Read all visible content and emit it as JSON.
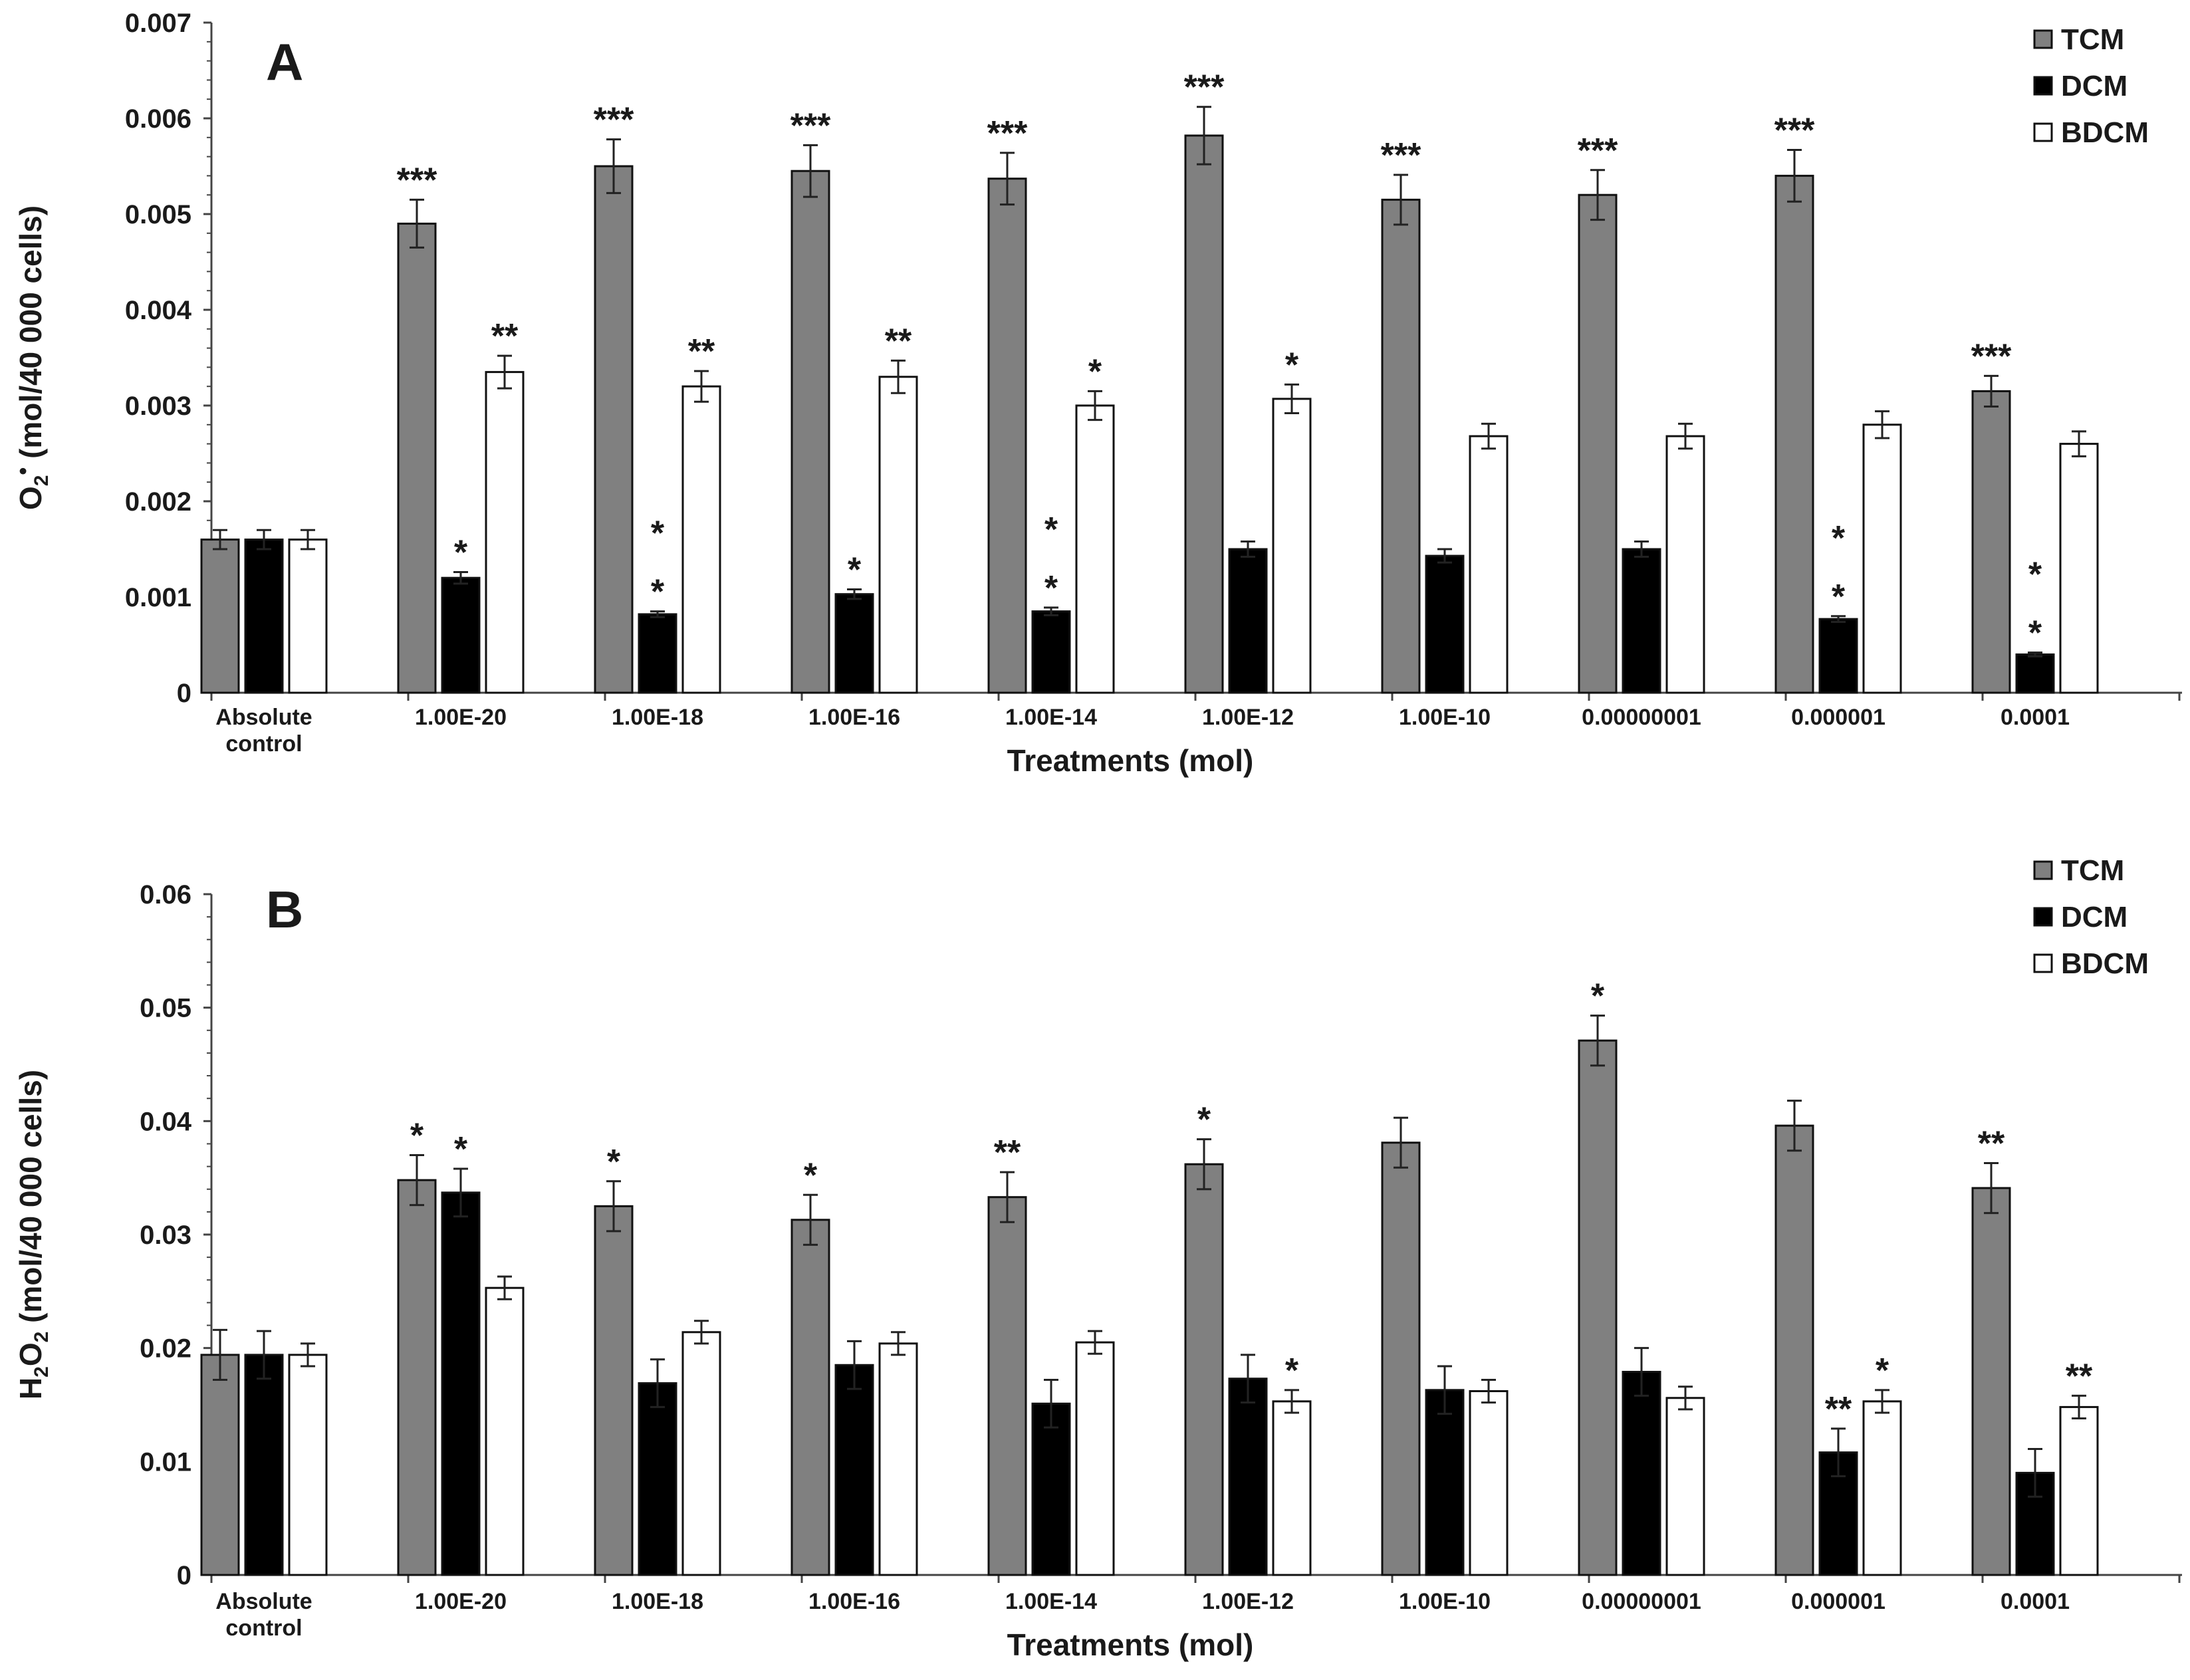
{
  "chart_data": [
    {
      "type": "bar",
      "panel_label": "A",
      "title": "",
      "xlabel": "Treatments (mol)",
      "ylabel": "O2• (mol/40 000 cells)",
      "ylabel_main": "O",
      "ylabel_sub": "2",
      "ylabel_sup": "•",
      "ylabel_rest": " (mol/40 000 cells)",
      "ylim": [
        0,
        0.007
      ],
      "ytick_labels": [
        "0",
        "0.001",
        "0.002",
        "0.003",
        "0.004",
        "0.005",
        "0.006",
        "0.007"
      ],
      "legend_position": "top-right",
      "categories": [
        [
          "Absolute",
          "control"
        ],
        [
          "1.00E-20"
        ],
        [
          "1.00E-18"
        ],
        [
          "1.00E-16"
        ],
        [
          "1.00E-14"
        ],
        [
          "1.00E-12"
        ],
        [
          "1.00E-10"
        ],
        [
          "0.00000001"
        ],
        [
          "0.000001"
        ],
        [
          "0.0001"
        ]
      ],
      "series": [
        {
          "name": "TCM",
          "color": "#808080",
          "values": [
            0.0016,
            0.0049,
            0.0055,
            0.00545,
            0.00537,
            0.00582,
            0.00515,
            0.0052,
            0.0054,
            0.00315
          ],
          "errors": [
            0.0001,
            0.00025,
            0.00028,
            0.00027,
            0.00027,
            0.0003,
            0.00026,
            0.00026,
            0.00027,
            0.00016
          ],
          "stars": [
            "",
            "***",
            "***",
            "***",
            "***",
            "***",
            "***",
            "***",
            "***",
            "***"
          ]
        },
        {
          "name": "DCM",
          "color": "#000000",
          "values": [
            0.0016,
            0.0012,
            0.00082,
            0.00103,
            0.00085,
            0.0015,
            0.00143,
            0.0015,
            0.00077,
            0.0004
          ],
          "errors": [
            0.0001,
            6e-05,
            3e-05,
            5e-05,
            4e-05,
            8e-05,
            7e-05,
            8e-05,
            3e-05,
            2e-05
          ],
          "stars": [
            "",
            "*",
            "*\n*",
            "*",
            "*\n*",
            "",
            "",
            "",
            "*\n*",
            "*\n*"
          ]
        },
        {
          "name": "BDCM",
          "color": "#ffffff",
          "values": [
            0.0016,
            0.00335,
            0.0032,
            0.0033,
            0.003,
            0.00307,
            0.00268,
            0.00268,
            0.0028,
            0.0026
          ],
          "errors": [
            0.0001,
            0.00017,
            0.00016,
            0.00017,
            0.00015,
            0.00015,
            0.00013,
            0.00013,
            0.00014,
            0.00013
          ],
          "stars": [
            "",
            "**",
            "**",
            "**",
            "*",
            "*",
            "",
            "",
            "",
            ""
          ]
        }
      ]
    },
    {
      "type": "bar",
      "panel_label": "B",
      "title": "",
      "xlabel": "Treatments (mol)",
      "ylabel": "H2O2 (mol/40 000 cells)",
      "ylabel_main": "H",
      "ylabel_sub": "2",
      "ylabel_main2": "O",
      "ylabel_sub2": "2",
      "ylabel_rest": " (mol/40 000 cells)",
      "ylim": [
        0,
        0.06
      ],
      "ytick_labels": [
        "0",
        "0.01",
        "0.02",
        "0.03",
        "0.04",
        "0.05",
        "0.06"
      ],
      "legend_position": "top-right",
      "categories": [
        [
          "Absolute",
          "control"
        ],
        [
          "1.00E-20"
        ],
        [
          "1.00E-18"
        ],
        [
          "1.00E-16"
        ],
        [
          "1.00E-14"
        ],
        [
          "1.00E-12"
        ],
        [
          "1.00E-10"
        ],
        [
          "0.00000001"
        ],
        [
          "0.000001"
        ],
        [
          "0.0001"
        ]
      ],
      "series": [
        {
          "name": "TCM",
          "color": "#808080",
          "values": [
            0.0194,
            0.0348,
            0.0325,
            0.0313,
            0.0333,
            0.0362,
            0.0381,
            0.0471,
            0.0396,
            0.0341
          ],
          "errors": [
            0.0022,
            0.0022,
            0.0022,
            0.0022,
            0.0022,
            0.0022,
            0.0022,
            0.0022,
            0.0022,
            0.0022
          ],
          "stars": [
            "",
            "*",
            "*",
            "*",
            "**",
            "*",
            "",
            "*",
            "",
            "**"
          ]
        },
        {
          "name": "DCM",
          "color": "#000000",
          "values": [
            0.0194,
            0.0337,
            0.0169,
            0.0185,
            0.0151,
            0.0173,
            0.0163,
            0.0179,
            0.0108,
            0.009
          ],
          "errors": [
            0.0021,
            0.0021,
            0.0021,
            0.0021,
            0.0021,
            0.0021,
            0.0021,
            0.0021,
            0.0021,
            0.0021
          ],
          "stars": [
            "",
            "*",
            "",
            "",
            "",
            "",
            "",
            "",
            "**",
            ""
          ]
        },
        {
          "name": "BDCM",
          "color": "#ffffff",
          "values": [
            0.0194,
            0.0253,
            0.0214,
            0.0204,
            0.0205,
            0.0153,
            0.0162,
            0.0156,
            0.0153,
            0.0148
          ],
          "errors": [
            0.001,
            0.001,
            0.001,
            0.001,
            0.001,
            0.001,
            0.001,
            0.001,
            0.001,
            0.001
          ],
          "stars": [
            "",
            "",
            "",
            "",
            "",
            "*",
            "",
            "",
            "*",
            "**"
          ]
        }
      ]
    }
  ]
}
